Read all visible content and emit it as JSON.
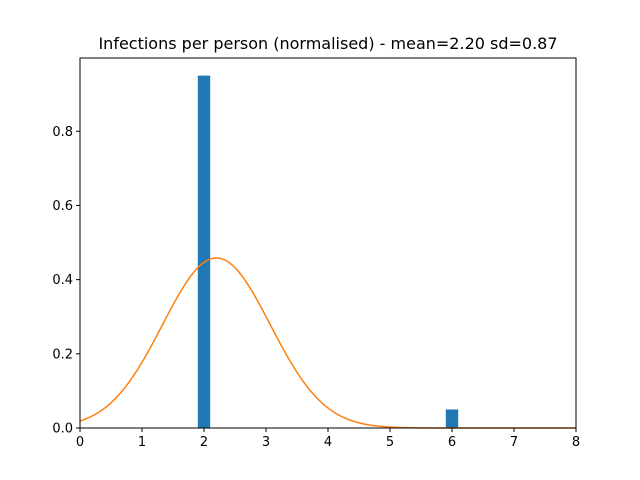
{
  "chart_data": {
    "type": "bar",
    "title": "Infections  per person (normalised) - mean=2.20 sd=0.87",
    "xlabel": "",
    "ylabel": "",
    "xlim": [
      0,
      8
    ],
    "ylim": [
      0,
      0.9975
    ],
    "x_ticks": [
      0,
      1,
      2,
      3,
      4,
      5,
      6,
      7,
      8
    ],
    "y_ticks": [
      0.0,
      0.2,
      0.4,
      0.6,
      0.8
    ],
    "x_tick_labels": [
      "0",
      "1",
      "2",
      "3",
      "4",
      "5",
      "6",
      "7",
      "8"
    ],
    "y_tick_labels": [
      "0.0",
      "0.2",
      "0.4",
      "0.6",
      "0.8"
    ],
    "grid": false,
    "series": [
      {
        "type": "bar",
        "bar_width": 0.2,
        "x": [
          2,
          6
        ],
        "values": [
          0.95,
          0.05
        ],
        "color": "#1f77b4"
      },
      {
        "type": "line",
        "curve": "normal-pdf",
        "mean": 2.2,
        "sd": 0.87,
        "x_range": [
          0,
          8
        ],
        "color": "#ff7f0e"
      }
    ]
  }
}
